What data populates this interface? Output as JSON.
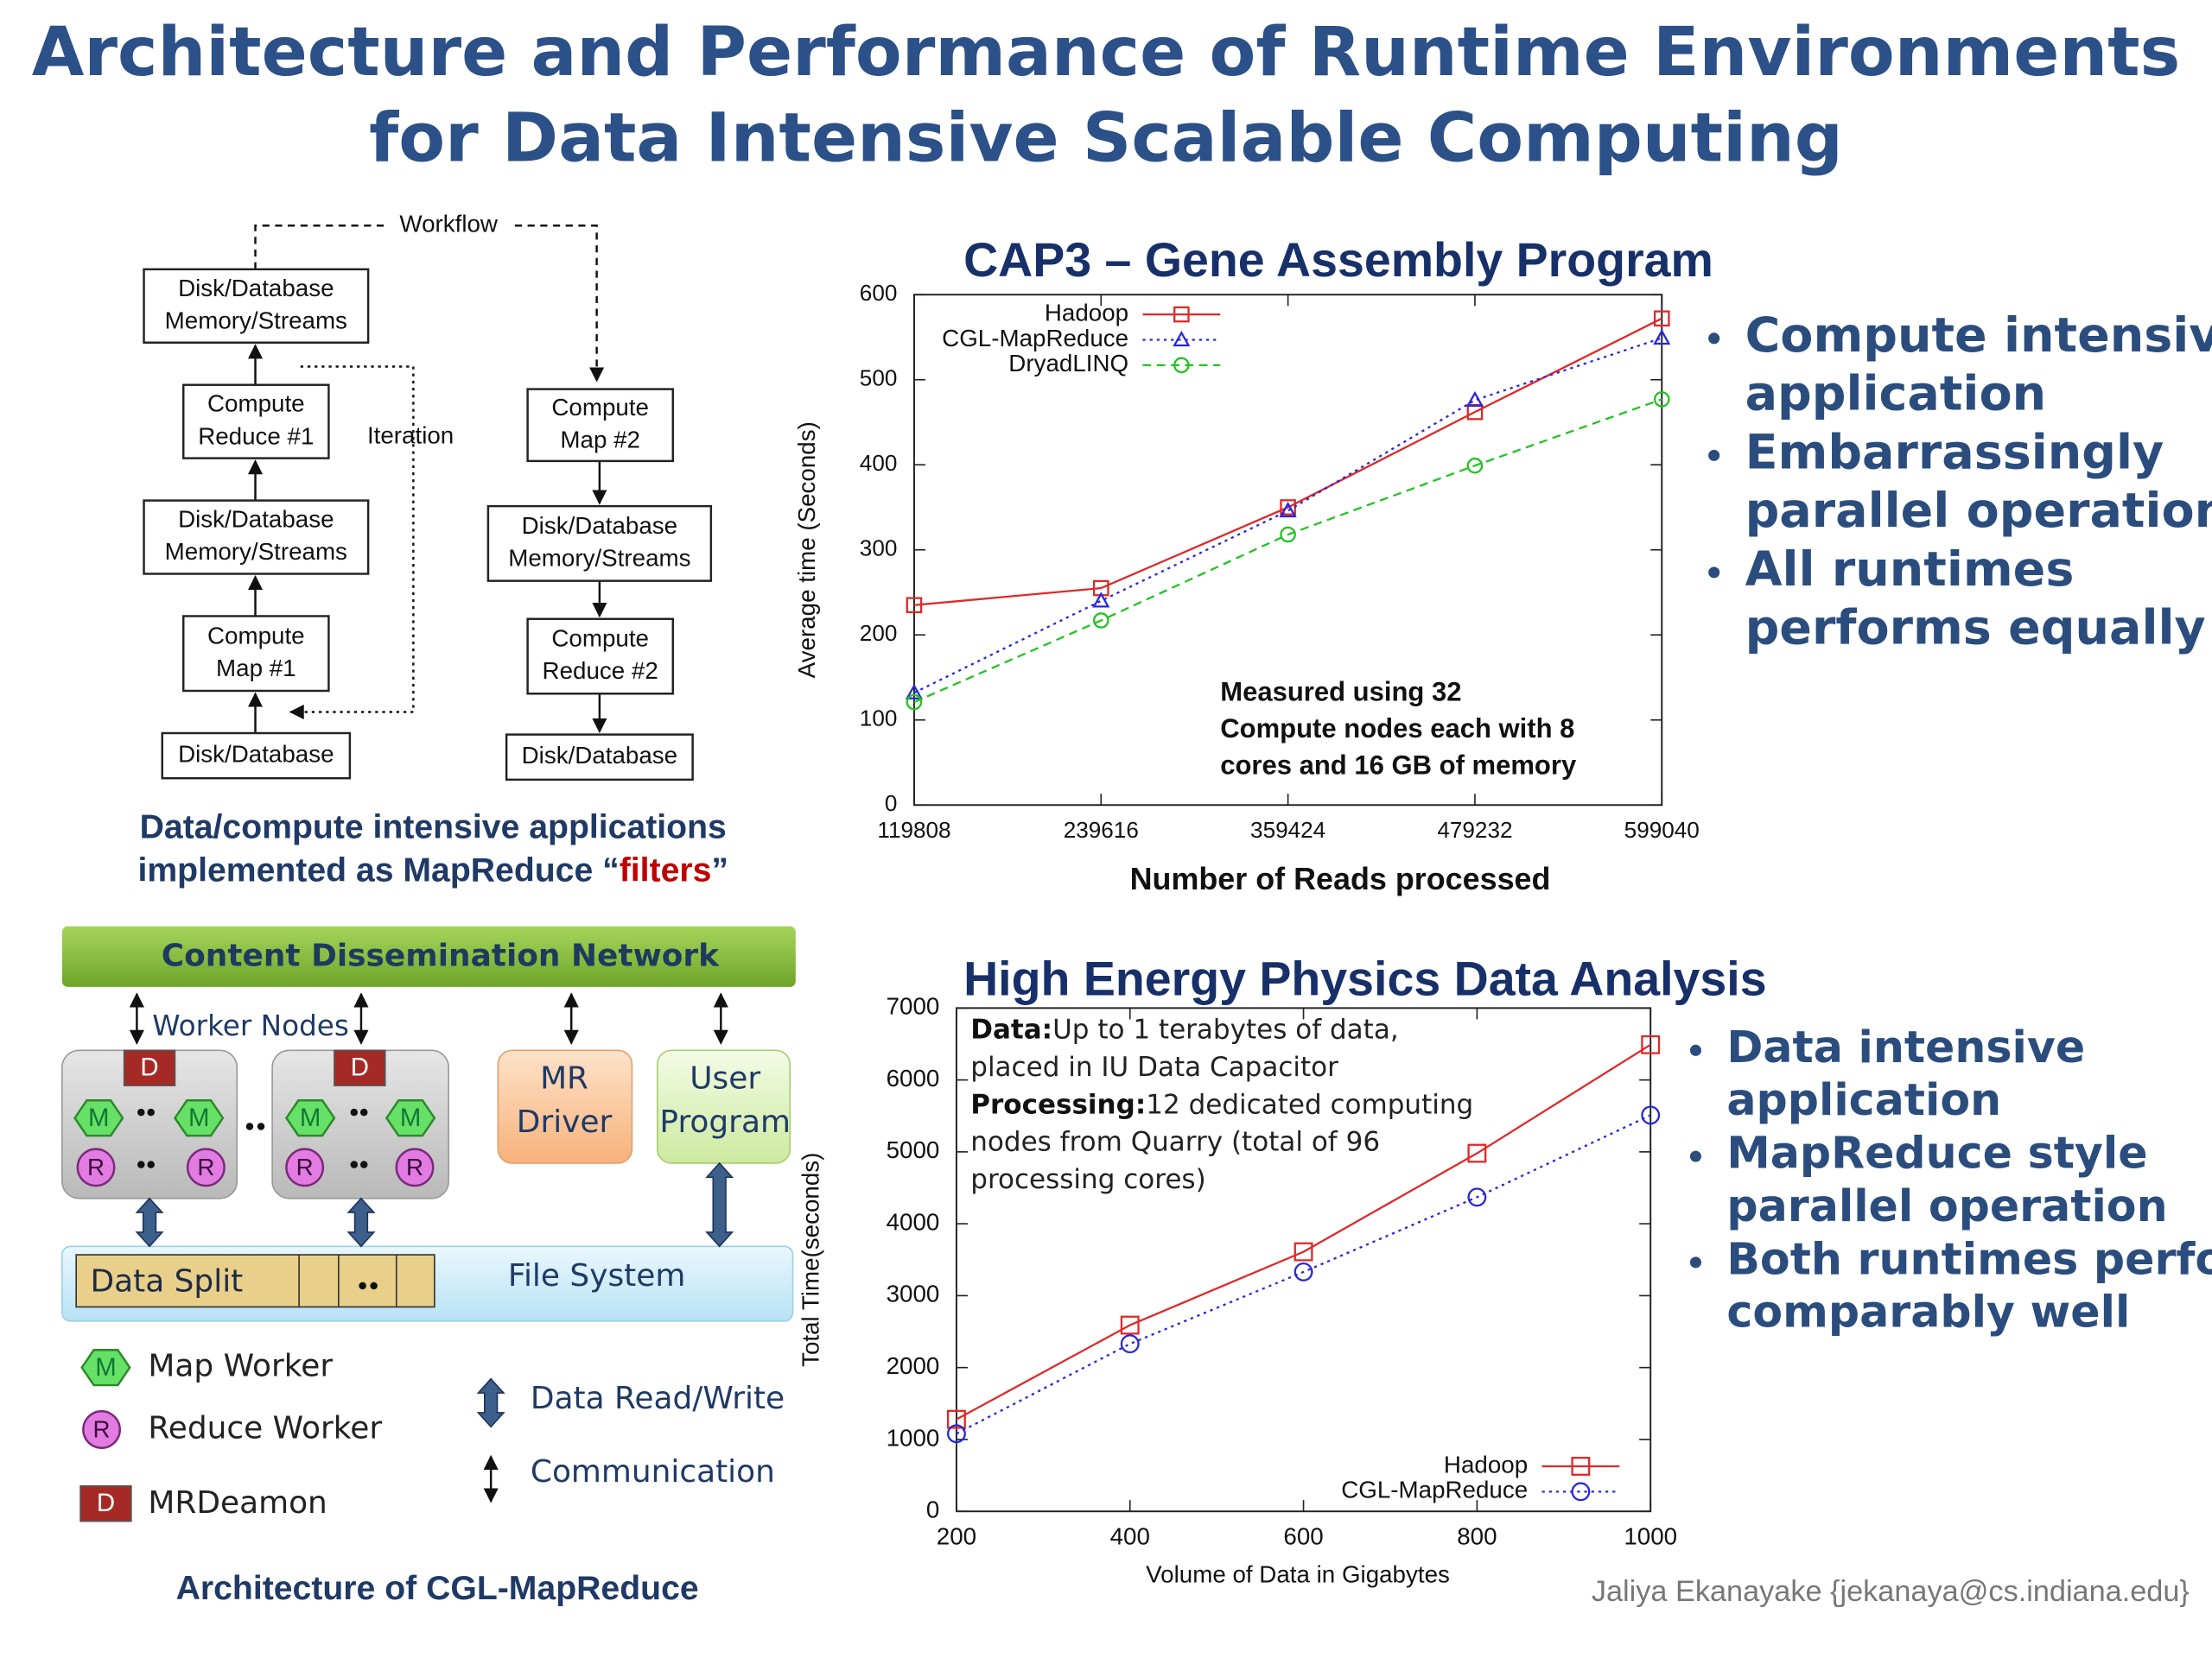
{
  "title": [
    "Architecture and Performance of Runtime Environments",
    "for Data Intensive Scalable Computing"
  ],
  "workflow": {
    "label": "Workflow",
    "iteration_label": "Iteration",
    "nodes": [
      {
        "lines": [
          "Disk/Database",
          "Memory/Streams"
        ]
      },
      {
        "lines": [
          "Compute",
          "Reduce #1"
        ]
      },
      {
        "lines": [
          "Disk/Database",
          "Memory/Streams"
        ]
      },
      {
        "lines": [
          "Compute",
          "Map #1"
        ]
      },
      {
        "lines": [
          "Disk/Database"
        ]
      },
      {
        "lines": [
          "Compute",
          "Map #2"
        ]
      },
      {
        "lines": [
          "Disk/Database",
          "Memory/Streams"
        ]
      },
      {
        "lines": [
          "Compute",
          "Reduce #2"
        ]
      },
      {
        "lines": [
          "Disk/Database"
        ]
      }
    ],
    "caption": {
      "line1": "Data/compute intensive applications",
      "line2": [
        "implemented as MapReduce “",
        "filters",
        "”"
      ]
    }
  },
  "architecture": {
    "network": "Content Dissemination Network",
    "worker_nodes": "Worker Nodes",
    "daemon_icon": "D",
    "map_icon": "M",
    "reduce_icon": "R",
    "driver": [
      "MR",
      "Driver"
    ],
    "user_program": [
      "User",
      "Program"
    ],
    "data_split": "Data Split",
    "file_system": "File System",
    "legend": {
      "map_worker": "Map Worker",
      "reduce_worker": "Reduce Worker",
      "daemon": "MRDeamon",
      "read_write": "Data Read/Write",
      "communication": "Communication"
    },
    "caption": "Architecture of CGL-MapReduce"
  },
  "chart_data": [
    {
      "type": "line",
      "title": "CAP3 – Gene Assembly Program",
      "x_label": "Number of Reads processed",
      "y_label": "Average time (Seconds)",
      "x": [
        119808,
        239616,
        359424,
        479232,
        599040
      ],
      "xlim": [
        119808,
        599040
      ],
      "xticks": [
        119808,
        239616,
        359424,
        479232,
        599040
      ],
      "ylim": [
        0,
        600
      ],
      "yticks": [
        0,
        100,
        200,
        300,
        400,
        500,
        600
      ],
      "grid": false,
      "legend": "upper left",
      "series": [
        {
          "name": "Hadoop",
          "color": "#e02828",
          "marker": "square",
          "dash": "solid",
          "values": [
            235,
            255,
            350,
            462,
            572
          ]
        },
        {
          "name": "CGL-MapReduce",
          "color": "#2828d8",
          "marker": "triangle",
          "dash": "dotted",
          "values": [
            132,
            240,
            346,
            476,
            549
          ]
        },
        {
          "name": "DryadLINQ",
          "color": "#22c322",
          "marker": "circle",
          "dash": "dashed",
          "values": [
            121,
            217,
            318,
            399,
            477
          ]
        }
      ],
      "annotation": [
        "Measured using 32",
        "Compute nodes each with 8",
        "cores and 16 GB of memory"
      ]
    },
    {
      "type": "line",
      "title": "High Energy Physics Data Analysis",
      "x_label": "Volume of Data in Gigabytes",
      "y_label": "Total Time(seconds)",
      "x": [
        200,
        400,
        600,
        800,
        1000
      ],
      "xlim": [
        200,
        1000
      ],
      "xticks": [
        200,
        400,
        600,
        800,
        1000
      ],
      "ylim": [
        0,
        7000
      ],
      "yticks": [
        0,
        1000,
        2000,
        3000,
        4000,
        5000,
        6000,
        7000
      ],
      "grid": false,
      "legend": "lower right",
      "series": [
        {
          "name": "Hadoop",
          "color": "#e02828",
          "marker": "square",
          "dash": "solid",
          "values": [
            1280,
            2590,
            3610,
            4980,
            6490
          ]
        },
        {
          "name": "CGL-MapReduce",
          "color": "#2828d8",
          "marker": "circle",
          "dash": "dotted",
          "values": [
            1080,
            2330,
            3330,
            4370,
            5510
          ]
        }
      ],
      "annotation": [
        {
          "label": "Data:",
          "lines": [
            "Up to 1 terabytes of data,",
            "placed in IU Data Capacitor"
          ]
        },
        {
          "label": "Processing:",
          "lines": [
            "12 dedicated computing",
            "nodes from Quarry (total of 96",
            "processing cores)"
          ]
        }
      ]
    }
  ],
  "bullets": [
    [
      [
        "Compute intensive",
        "application"
      ],
      [
        "Embarrassingly",
        "parallel operation"
      ],
      [
        "All runtimes",
        "performs equally well"
      ]
    ],
    [
      [
        "Data intensive",
        "application"
      ],
      [
        "MapReduce style",
        "parallel operation"
      ],
      [
        "Both runtimes perform",
        "comparably well"
      ]
    ]
  ],
  "footer": "Jaliya Ekanayake {jekanaya@cs.indiana.edu}"
}
